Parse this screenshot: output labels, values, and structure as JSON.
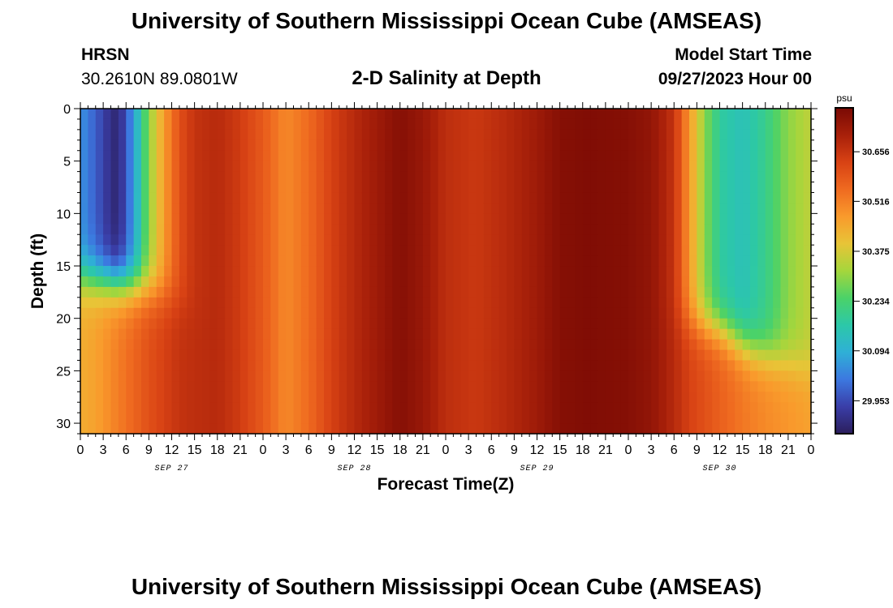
{
  "page": {
    "title_top": "University of Southern Mississippi Ocean Cube (AMSEAS)",
    "title_bottom": "University of Southern Mississippi Ocean Cube (AMSEAS)",
    "station": "HRSN",
    "coords": "30.2610N  89.0801W",
    "plot_title": "2-D Salinity at Depth",
    "model_start_label": "Model Start Time",
    "model_start_value": "09/27/2023 Hour 00"
  },
  "chart_data": {
    "type": "heatmap",
    "title": "2-D Salinity at Depth",
    "xlabel": "Forecast Time(Z)",
    "ylabel": "Depth (ft)",
    "x_ticks": [
      "0",
      "3",
      "6",
      "9",
      "12",
      "15",
      "18",
      "21",
      "0",
      "3",
      "6",
      "9",
      "12",
      "15",
      "18",
      "21",
      "0",
      "3",
      "6",
      "9",
      "12",
      "15",
      "18",
      "21",
      "0",
      "3",
      "6",
      "9",
      "12",
      "15",
      "18",
      "21",
      "0"
    ],
    "date_labels": [
      {
        "label": "SEP 27",
        "hour": 12
      },
      {
        "label": "SEP 28",
        "hour": 36
      },
      {
        "label": "SEP 29",
        "hour": 60
      },
      {
        "label": "SEP 30",
        "hour": 84
      }
    ],
    "x_range_hours": [
      0,
      96
    ],
    "y_ticks": [
      0,
      5,
      10,
      15,
      20,
      25,
      30
    ],
    "y_range_ft": [
      0,
      31
    ],
    "y_inverted": true,
    "colorbar": {
      "unit": "psu",
      "labels": [
        "30.656",
        "30.516",
        "30.375",
        "30.234",
        "30.094",
        "29.953"
      ],
      "range": [
        29.86,
        30.78
      ],
      "colors": [
        "#2b1e5c",
        "#3a3ea8",
        "#3c78e0",
        "#2fb0d6",
        "#2cc8a8",
        "#4bd268",
        "#a5d63c",
        "#e8c437",
        "#f99a2c",
        "#ef6a20",
        "#d84214",
        "#a8200a",
        "#7a0a04"
      ]
    },
    "salinity_profile": [
      {
        "hour": 0,
        "surface": 30.05,
        "bottom": 30.44
      },
      {
        "hour": 2,
        "surface": 29.98,
        "bottom": 30.46
      },
      {
        "hour": 4,
        "surface": 29.9,
        "bottom": 30.5
      },
      {
        "hour": 5,
        "surface": 29.88,
        "bottom": 30.52
      },
      {
        "hour": 7,
        "surface": 30.06,
        "bottom": 30.56
      },
      {
        "hour": 9,
        "surface": 30.3,
        "bottom": 30.6
      },
      {
        "hour": 11,
        "surface": 30.47,
        "bottom": 30.63
      },
      {
        "hour": 13,
        "surface": 30.6,
        "bottom": 30.66
      },
      {
        "hour": 15,
        "surface": 30.66,
        "bottom": 30.67
      },
      {
        "hour": 18,
        "surface": 30.68,
        "bottom": 30.68
      },
      {
        "hour": 21,
        "surface": 30.64,
        "bottom": 30.64
      },
      {
        "hour": 24,
        "surface": 30.58,
        "bottom": 30.58
      },
      {
        "hour": 27,
        "surface": 30.5,
        "bottom": 30.5
      },
      {
        "hour": 30,
        "surface": 30.55,
        "bottom": 30.55
      },
      {
        "hour": 33,
        "surface": 30.63,
        "bottom": 30.63
      },
      {
        "hour": 36,
        "surface": 30.68,
        "bottom": 30.68
      },
      {
        "hour": 39,
        "surface": 30.72,
        "bottom": 30.72
      },
      {
        "hour": 42,
        "surface": 30.76,
        "bottom": 30.76
      },
      {
        "hour": 45,
        "surface": 30.73,
        "bottom": 30.73
      },
      {
        "hour": 48,
        "surface": 30.67,
        "bottom": 30.67
      },
      {
        "hour": 52,
        "surface": 30.65,
        "bottom": 30.65
      },
      {
        "hour": 56,
        "surface": 30.68,
        "bottom": 30.68
      },
      {
        "hour": 60,
        "surface": 30.72,
        "bottom": 30.72
      },
      {
        "hour": 63,
        "surface": 30.76,
        "bottom": 30.76
      },
      {
        "hour": 67,
        "surface": 30.77,
        "bottom": 30.77
      },
      {
        "hour": 72,
        "surface": 30.76,
        "bottom": 30.76
      },
      {
        "hour": 75,
        "surface": 30.74,
        "bottom": 30.74
      },
      {
        "hour": 78,
        "surface": 30.66,
        "bottom": 30.68
      },
      {
        "hour": 80,
        "surface": 30.48,
        "bottom": 30.63
      },
      {
        "hour": 82,
        "surface": 30.3,
        "bottom": 30.6
      },
      {
        "hour": 84,
        "surface": 30.18,
        "bottom": 30.57
      },
      {
        "hour": 87,
        "surface": 30.14,
        "bottom": 30.53
      },
      {
        "hour": 90,
        "surface": 30.2,
        "bottom": 30.5
      },
      {
        "hour": 93,
        "surface": 30.3,
        "bottom": 30.48
      },
      {
        "hour": 96,
        "surface": 30.35,
        "bottom": 30.46
      }
    ],
    "halocline_depth_ft": [
      {
        "hour": 0,
        "depth": 16
      },
      {
        "hour": 8,
        "depth": 17
      },
      {
        "hour": 12,
        "depth": 18
      },
      {
        "hour": 16,
        "depth": 20
      },
      {
        "hour": 76,
        "depth": 20
      },
      {
        "hour": 84,
        "depth": 21
      },
      {
        "hour": 88,
        "depth": 23
      },
      {
        "hour": 96,
        "depth": 25
      }
    ]
  }
}
